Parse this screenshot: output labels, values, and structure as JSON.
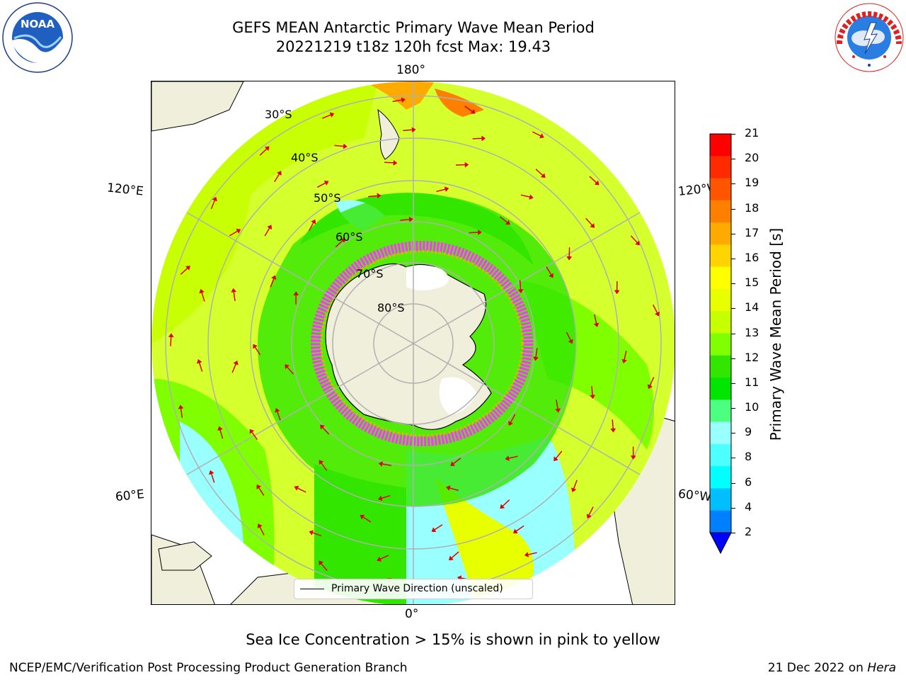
{
  "header": {
    "title_line1": "GEFS MEAN Antarctic Primary Wave Mean Period",
    "title_line2": "20221219 t18z 120h fcst   Max: 19.43"
  },
  "logos": {
    "left": "NOAA",
    "left_ring": "NATIONAL OCEANIC AND ATMOSPHERIC ADMINISTRATION · U.S. DEPARTMENT OF COMMERCE",
    "right_ring": "NATIONAL WEATHER SERVICE"
  },
  "map": {
    "lon_labels": {
      "top": "180°",
      "bottom": "0°",
      "left_upper": "120°E",
      "left_lower": "60°E",
      "right_upper": "120°W",
      "right_lower": "60°W"
    },
    "lat_labels": [
      "30°S",
      "40°S",
      "50°S",
      "60°S",
      "70°S",
      "80°S"
    ],
    "legend": "Primary Wave Direction (unscaled)"
  },
  "colorbar": {
    "label": "Primary Wave Mean Period [s]",
    "ticks": [
      "21",
      "20",
      "19",
      "18",
      "17",
      "16",
      "15",
      "14",
      "13",
      "12",
      "11",
      "10",
      "9",
      "8",
      "6",
      "4",
      "2"
    ],
    "colors": [
      "#ff0000",
      "#ff2a00",
      "#ff5500",
      "#ff7f00",
      "#ffaa00",
      "#ffd400",
      "#ffff00",
      "#e8ff00",
      "#c6ff00",
      "#7fff00",
      "#32e600",
      "#00e600",
      "#4dff80",
      "#99ffff",
      "#4dffff",
      "#00ffff",
      "#00bfff",
      "#007fff"
    ],
    "extend_color": "#0000ff"
  },
  "footer": {
    "note": "Sea Ice Concentration > 15% is shown in pink to yellow",
    "credit_left": "NCEP/EMC/Verification Post Processing Product Generation Branch",
    "credit_date": "21 Dec 2022 on ",
    "credit_machine": "Hera"
  }
}
